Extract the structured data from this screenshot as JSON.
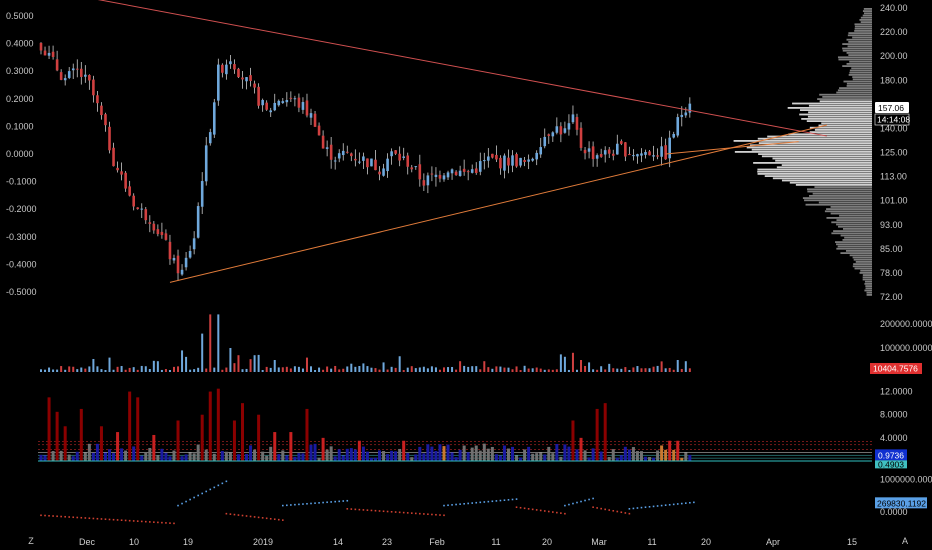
{
  "colors": {
    "background": "#000000",
    "up": "#6fa8dc",
    "down": "#d04040",
    "wick": "#cccccc",
    "trendline": "#d05050",
    "support": "#e07b3a",
    "volume_profile": "#d8d8d8",
    "osc_strong": "#8b0000",
    "osc_mid": "#c82020",
    "osc_blue": "#1a1aa0",
    "osc_orange": "#c87830",
    "osc_gray": "#707070",
    "series_up": "#5aa0e6",
    "series_down": "#d04030"
  },
  "time_axis": {
    "labels": [
      "Dec",
      "10",
      "19",
      "2019",
      "14",
      "23",
      "Feb",
      "11",
      "20",
      "Mar",
      "11",
      "20",
      "Apr",
      "15"
    ],
    "corner_left": "Z",
    "corner_right": "A"
  },
  "chart_data": [
    {
      "type": "candlestick",
      "panel": "price",
      "left_axis_labels": [
        "0.5000",
        "0.4000",
        "0.3000",
        "0.2000",
        "0.1000",
        "0.0000",
        "-0.1000",
        "-0.2000",
        "-0.3000",
        "-0.4000",
        "-0.5000"
      ],
      "left_ylim": [
        -0.5,
        0.5
      ],
      "right_axis_labels": [
        "240.00",
        "220.00",
        "200.00",
        "180.00",
        "157.06",
        "140.00",
        "125.00",
        "113.00",
        "101.00",
        "93.00",
        "85.00",
        "78.00",
        "72.00"
      ],
      "last_price": "157.06",
      "countdown": "14:14:08",
      "key_points": [
        {
          "i": 0,
          "v": 0.4
        },
        {
          "i": 3,
          "v": 0.33
        },
        {
          "i": 6,
          "v": 0.27
        },
        {
          "i": 9,
          "v": 0.3
        },
        {
          "i": 12,
          "v": 0.25
        },
        {
          "i": 15,
          "v": 0.13
        },
        {
          "i": 18,
          "v": -0.02
        },
        {
          "i": 21,
          "v": -0.12
        },
        {
          "i": 24,
          "v": -0.2
        },
        {
          "i": 27,
          "v": -0.23
        },
        {
          "i": 30,
          "v": -0.3
        },
        {
          "i": 33,
          "v": -0.4
        },
        {
          "i": 35,
          "v": -0.43
        },
        {
          "i": 38,
          "v": -0.3
        },
        {
          "i": 40,
          "v": -0.08
        },
        {
          "i": 42,
          "v": 0.1
        },
        {
          "i": 44,
          "v": 0.3
        },
        {
          "i": 47,
          "v": 0.35
        },
        {
          "i": 50,
          "v": 0.28
        },
        {
          "i": 53,
          "v": 0.22
        },
        {
          "i": 56,
          "v": 0.15
        },
        {
          "i": 59,
          "v": 0.2
        },
        {
          "i": 62,
          "v": 0.2
        },
        {
          "i": 65,
          "v": 0.17
        },
        {
          "i": 68,
          "v": 0.12
        },
        {
          "i": 70,
          "v": 0.02
        },
        {
          "i": 73,
          "v": -0.01
        },
        {
          "i": 76,
          "v": 0.0
        },
        {
          "i": 80,
          "v": -0.02
        },
        {
          "i": 84,
          "v": -0.05
        },
        {
          "i": 87,
          "v": 0.0
        },
        {
          "i": 91,
          "v": -0.03
        },
        {
          "i": 95,
          "v": -0.1
        },
        {
          "i": 98,
          "v": -0.08
        },
        {
          "i": 101,
          "v": -0.05
        },
        {
          "i": 105,
          "v": -0.07
        },
        {
          "i": 108,
          "v": -0.05
        },
        {
          "i": 111,
          "v": -0.02
        },
        {
          "i": 114,
          "v": -0.03
        },
        {
          "i": 117,
          "v": -0.02
        },
        {
          "i": 121,
          "v": -0.04
        },
        {
          "i": 124,
          "v": 0.05
        },
        {
          "i": 127,
          "v": 0.1
        },
        {
          "i": 130,
          "v": 0.08
        },
        {
          "i": 132,
          "v": 0.12
        },
        {
          "i": 134,
          "v": 0.03
        },
        {
          "i": 137,
          "v": 0.0
        },
        {
          "i": 140,
          "v": 0.0
        },
        {
          "i": 144,
          "v": 0.02
        },
        {
          "i": 148,
          "v": 0.0
        },
        {
          "i": 152,
          "v": 0.01
        },
        {
          "i": 155,
          "v": 0.0
        },
        {
          "i": 157,
          "v": 0.08
        },
        {
          "i": 159,
          "v": 0.15
        },
        {
          "i": 161,
          "v": 0.2
        }
      ],
      "bar_count": 162,
      "x_from_label": "Dec",
      "trendlines": [
        {
          "name": "resistance",
          "from": {
            "i": 14,
            "v": 0.56
          },
          "to": {
            "i": 195,
            "v": 0.065
          }
        },
        {
          "name": "support",
          "from": {
            "i": 32,
            "v": -0.465
          },
          "to": {
            "i": 195,
            "v": 0.105
          }
        },
        {
          "name": "support-short",
          "from": {
            "i": 155,
            "v": 0.0
          },
          "to": {
            "i": 188,
            "v": 0.045
          }
        }
      ]
    },
    {
      "type": "bar",
      "panel": "volume",
      "axis_labels": [
        "200000.0000",
        "100000.0000"
      ],
      "ylim": [
        0,
        250000
      ],
      "last_value": "10404.7576",
      "peaks": [
        {
          "i": 17,
          "v": 60000
        },
        {
          "i": 29,
          "v": 45000
        },
        {
          "i": 35,
          "v": 90000
        },
        {
          "i": 40,
          "v": 160000
        },
        {
          "i": 42,
          "v": 240000
        },
        {
          "i": 44,
          "v": 240000
        },
        {
          "i": 47,
          "v": 100000
        },
        {
          "i": 49,
          "v": 70000
        },
        {
          "i": 53,
          "v": 70000
        },
        {
          "i": 58,
          "v": 50000
        },
        {
          "i": 66,
          "v": 60000
        },
        {
          "i": 85,
          "v": 40000
        },
        {
          "i": 104,
          "v": 45000
        },
        {
          "i": 110,
          "v": 45000
        },
        {
          "i": 132,
          "v": 80000
        },
        {
          "i": 134,
          "v": 50000
        },
        {
          "i": 136,
          "v": 40000
        },
        {
          "i": 158,
          "v": 50000
        },
        {
          "i": 160,
          "v": 45000
        }
      ],
      "baseline": 8000
    },
    {
      "type": "bar",
      "panel": "oscillator",
      "axis_labels": [
        "12.0000",
        "8.0000",
        "4.0000"
      ],
      "ylim": [
        0,
        14
      ],
      "current_value": "0.9736",
      "last_tag": "0.4903",
      "level_lines": [
        3.4,
        2.8,
        2.0,
        1.5,
        1.0,
        0.5
      ],
      "peaks": [
        {
          "i": 2,
          "v": 11
        },
        {
          "i": 4,
          "v": 8.5
        },
        {
          "i": 6,
          "v": 6
        },
        {
          "i": 10,
          "v": 9
        },
        {
          "i": 15,
          "v": 6
        },
        {
          "i": 19,
          "v": 5
        },
        {
          "i": 22,
          "v": 12
        },
        {
          "i": 24,
          "v": 11
        },
        {
          "i": 28,
          "v": 4.5
        },
        {
          "i": 34,
          "v": 7
        },
        {
          "i": 40,
          "v": 8
        },
        {
          "i": 42,
          "v": 12
        },
        {
          "i": 44,
          "v": 12.5
        },
        {
          "i": 48,
          "v": 7
        },
        {
          "i": 50,
          "v": 10
        },
        {
          "i": 54,
          "v": 8
        },
        {
          "i": 58,
          "v": 5
        },
        {
          "i": 62,
          "v": 5
        },
        {
          "i": 66,
          "v": 9
        },
        {
          "i": 70,
          "v": 4
        },
        {
          "i": 79,
          "v": 3.5
        },
        {
          "i": 90,
          "v": 3.5
        },
        {
          "i": 110,
          "v": 3.0
        },
        {
          "i": 120,
          "v": 2.0
        },
        {
          "i": 132,
          "v": 7
        },
        {
          "i": 134,
          "v": 4
        },
        {
          "i": 138,
          "v": 9
        },
        {
          "i": 140,
          "v": 10
        },
        {
          "i": 156,
          "v": 3.5
        },
        {
          "i": 158,
          "v": 3.5
        }
      ]
    },
    {
      "type": "scatter",
      "panel": "series",
      "axis_labels": [
        "1000000.0000",
        "0.0000"
      ],
      "ylim": [
        -400000,
        1300000
      ],
      "last_value": "269830.1192",
      "segments": [
        {
          "dir": "down",
          "from": {
            "i": 0,
            "v": -100000
          },
          "to": {
            "i": 33,
            "v": -350000
          }
        },
        {
          "dir": "up",
          "from": {
            "i": 34,
            "v": 200000
          },
          "to": {
            "i": 46,
            "v": 950000
          }
        },
        {
          "dir": "down",
          "from": {
            "i": 46,
            "v": -50000
          },
          "to": {
            "i": 60,
            "v": -250000
          }
        },
        {
          "dir": "up",
          "from": {
            "i": 60,
            "v": 200000
          },
          "to": {
            "i": 76,
            "v": 350000
          }
        },
        {
          "dir": "down",
          "from": {
            "i": 76,
            "v": 100000
          },
          "to": {
            "i": 100,
            "v": -100000
          }
        },
        {
          "dir": "up",
          "from": {
            "i": 100,
            "v": 200000
          },
          "to": {
            "i": 118,
            "v": 400000
          }
        },
        {
          "dir": "down",
          "from": {
            "i": 118,
            "v": 150000
          },
          "to": {
            "i": 130,
            "v": -50000
          }
        },
        {
          "dir": "up",
          "from": {
            "i": 130,
            "v": 200000
          },
          "to": {
            "i": 137,
            "v": 420000
          }
        },
        {
          "dir": "down",
          "from": {
            "i": 137,
            "v": 150000
          },
          "to": {
            "i": 146,
            "v": -50000
          }
        },
        {
          "dir": "up",
          "from": {
            "i": 146,
            "v": 100000
          },
          "to": {
            "i": 162,
            "v": 300000
          }
        }
      ]
    }
  ]
}
